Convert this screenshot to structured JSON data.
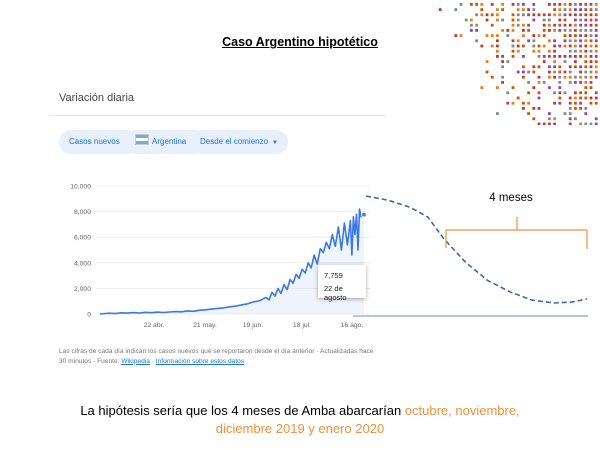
{
  "slide": {
    "title": "Caso Argentino hipotético",
    "conclusion_prefix": "La hipótesis sería que los 4 meses de Amba abarcarían ",
    "conclusion_highlight_1": "octubre, noviembre,",
    "conclusion_highlight_2": "diciembre 2019 y enero 2020",
    "highlight_color": "#f0913b"
  },
  "card": {
    "header": "Variación diaria",
    "chips": [
      {
        "label": "Casos nuevos",
        "icon": "chevron-down-icon"
      },
      {
        "label": "Argentina",
        "icon": "argentina-flag-icon"
      },
      {
        "label": "Desde el comienzo",
        "icon": "chevron-down-icon"
      }
    ],
    "tooltip": {
      "value": "7,759",
      "date": "22 de agosto"
    },
    "footer_text": "Las cifras de cada día indican los casos nuevos que se reportaron desde el día anterior · Actualizadas hace 30 minutos · Fuente: ",
    "footer_link_1": "Wikipedia",
    "footer_sep": " · ",
    "footer_link_2": "Información sobre estos datos"
  },
  "annotation": {
    "label": "4 meses",
    "color": "#f0913b"
  },
  "chart_data": {
    "type": "line",
    "title": "",
    "xlabel": "",
    "ylabel": "",
    "ylim": [
      0,
      10000
    ],
    "yticks": [
      0,
      2000,
      4000,
      6000,
      8000,
      10000
    ],
    "ytick_labels": [
      "0",
      "2,000",
      "4,000",
      "6,000",
      "8,000",
      "10,000"
    ],
    "xtick_labels": [
      "22 abr.",
      "21 may.",
      "19 jun.",
      "18 jul.",
      "16 ago."
    ],
    "series": [
      {
        "color": "#3b78e7",
        "x": [
          0,
          6,
          10,
          14,
          18,
          22,
          26,
          30,
          34,
          38,
          42,
          46,
          50,
          54,
          58,
          62,
          66,
          70,
          74,
          78,
          82,
          86,
          90,
          94,
          98,
          102,
          106,
          110,
          112,
          114,
          116,
          118,
          120,
          122,
          124,
          126,
          128,
          130,
          132,
          134,
          136,
          138,
          140,
          142,
          144,
          146,
          148,
          150,
          152,
          154,
          156,
          158,
          160,
          162,
          164,
          166,
          167,
          168,
          169,
          170,
          171,
          172,
          173,
          174,
          175
        ],
        "values": [
          0,
          60,
          30,
          90,
          70,
          110,
          80,
          130,
          100,
          150,
          120,
          160,
          190,
          170,
          240,
          210,
          300,
          330,
          380,
          440,
          480,
          560,
          620,
          720,
          800,
          950,
          1050,
          1300,
          1100,
          1700,
          1400,
          2000,
          1600,
          2300,
          1900,
          2700,
          2400,
          3100,
          2800,
          3500,
          3200,
          4000,
          3600,
          4600,
          3900,
          5100,
          4800,
          5600,
          5100,
          6200,
          5300,
          6800,
          5000,
          7100,
          5400,
          7300,
          4600,
          7600,
          6200,
          7800,
          5000,
          8200,
          7600,
          7900,
          7759
        ]
      }
    ]
  },
  "projection": {
    "type": "line",
    "style": "dashed",
    "series": [
      {
        "color": "#3f67a9",
        "t": [
          0,
          0.1,
          0.2,
          0.28,
          0.35,
          0.45,
          0.55,
          0.65,
          0.75,
          0.85,
          0.93,
          1
        ],
        "values": [
          8100,
          7800,
          7300,
          6600,
          5100,
          3400,
          2100,
          1300,
          700,
          500,
          560,
          780
        ]
      }
    ]
  }
}
